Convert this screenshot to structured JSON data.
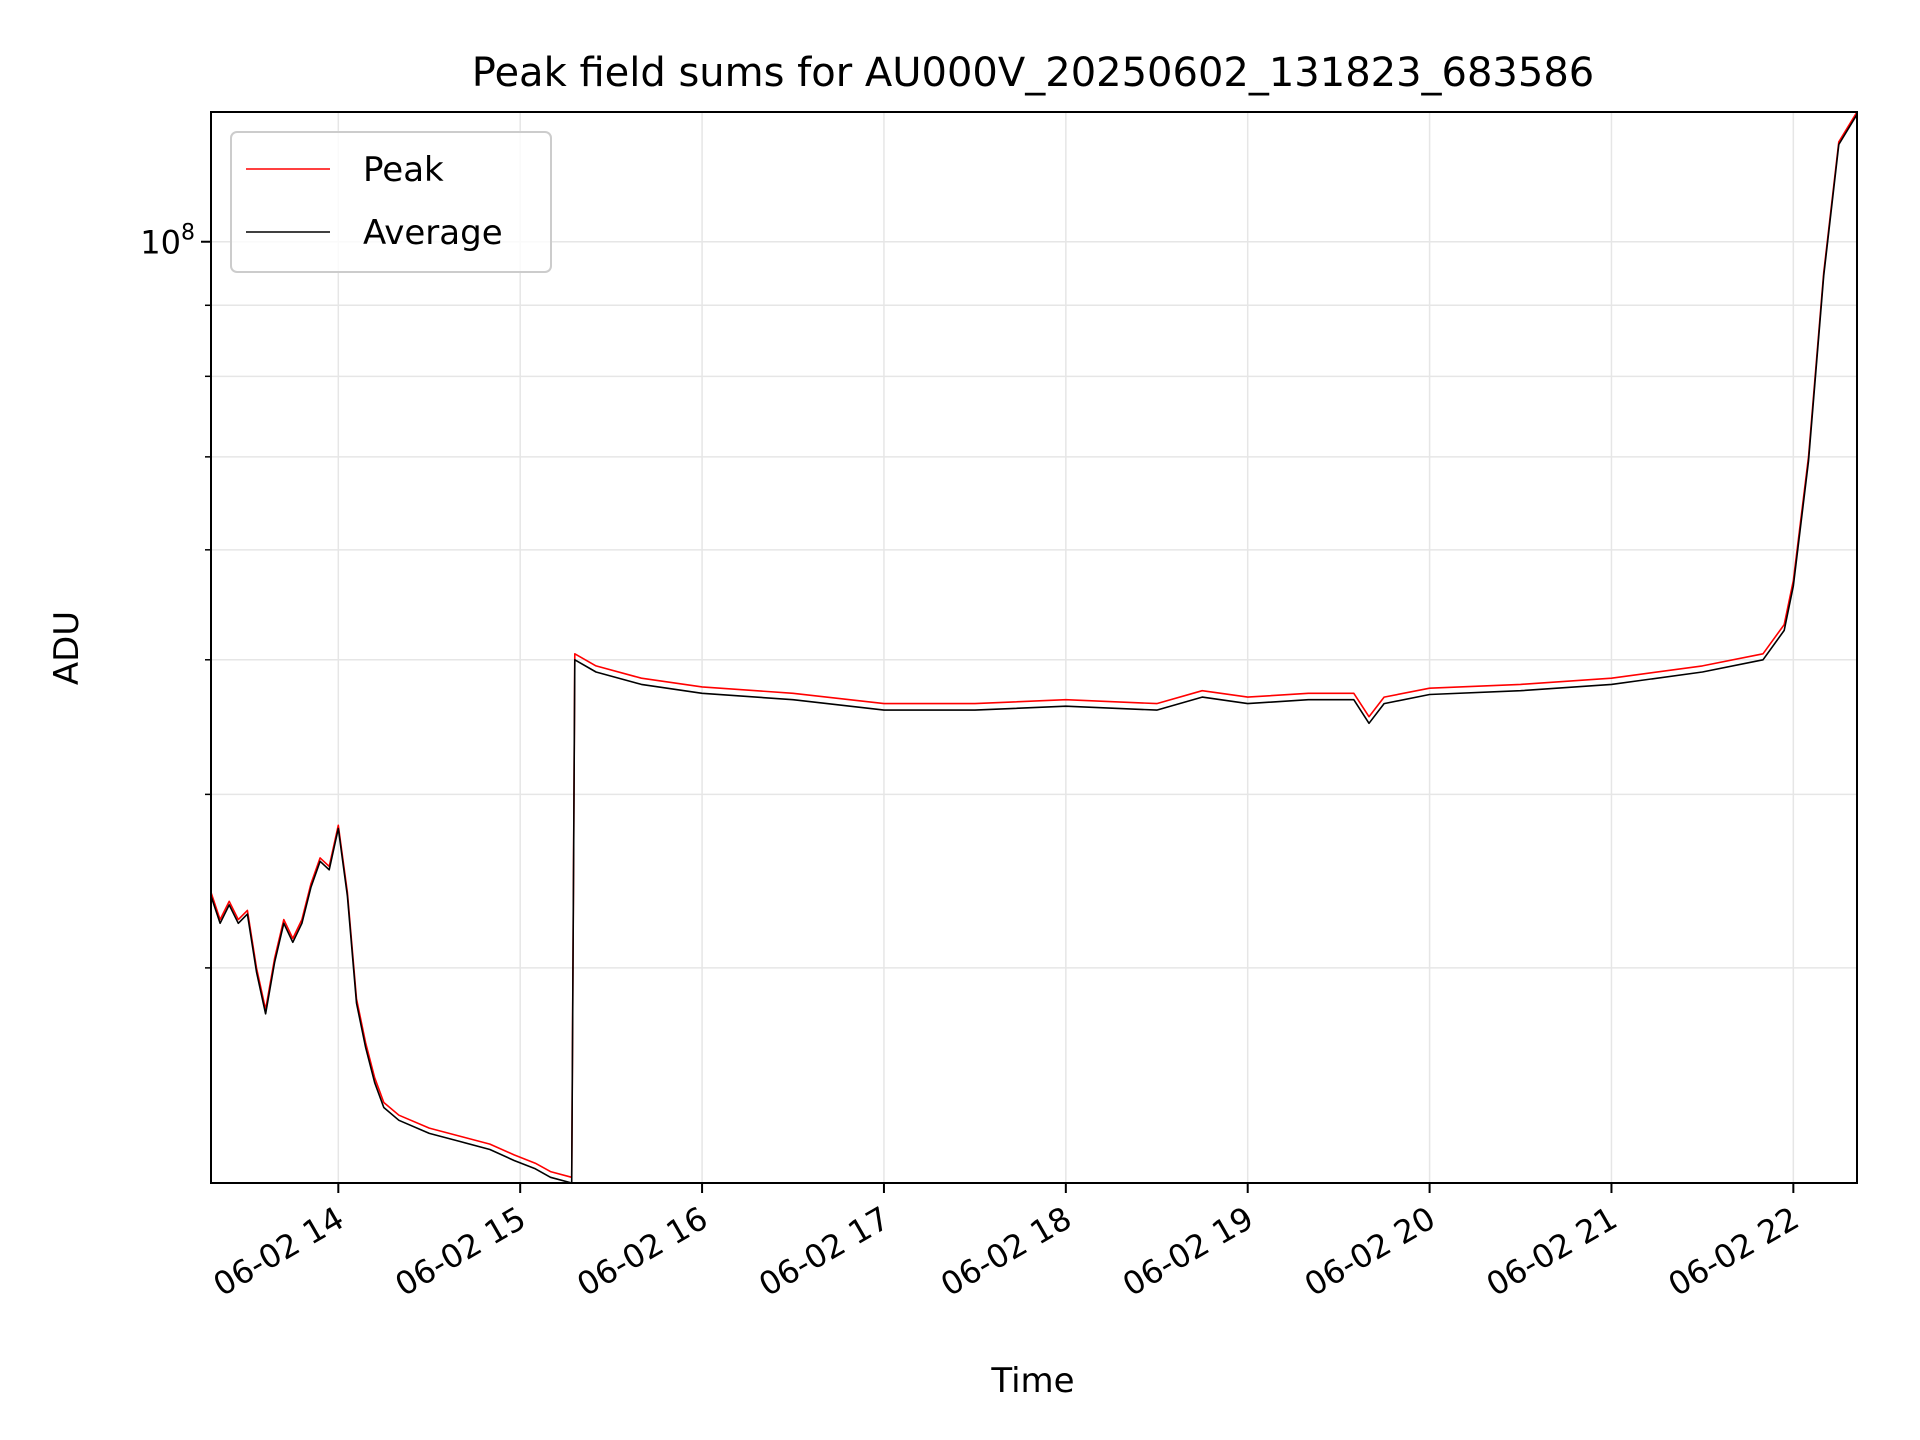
{
  "chart_data": {
    "type": "line",
    "title": "Peak field sums for AU000V_20250602_131823_683586",
    "xlabel": "Time",
    "ylabel": "ADU",
    "y_scale": "log",
    "xlim": [
      "2025-06-02 13:18",
      "2025-06-02 22:21"
    ],
    "ylim": [
      21000000,
      124000000
    ],
    "x_ticks": [
      "06-02 14",
      "06-02 15",
      "06-02 16",
      "06-02 17",
      "06-02 18",
      "06-02 19",
      "06-02 20",
      "06-02 21",
      "06-02 22"
    ],
    "x_tick_values": [
      "2025-06-02 14:00",
      "2025-06-02 15:00",
      "2025-06-02 16:00",
      "2025-06-02 17:00",
      "2025-06-02 18:00",
      "2025-06-02 19:00",
      "2025-06-02 20:00",
      "2025-06-02 21:00",
      "2025-06-02 22:00"
    ],
    "y_ticks": [
      {
        "label_base": "10",
        "label_exp": "8",
        "value": 100000000
      }
    ],
    "y_minor_ticks": [
      30000000,
      40000000,
      50000000,
      60000000,
      70000000,
      80000000,
      90000000
    ],
    "grid": true,
    "legend": "upper left",
    "series": [
      {
        "name": "Peak",
        "color": "#ff0000",
        "x": [
          "2025-06-02 13:18",
          "2025-06-02 13:21",
          "2025-06-02 13:24",
          "2025-06-02 13:27",
          "2025-06-02 13:30",
          "2025-06-02 13:33",
          "2025-06-02 13:36",
          "2025-06-02 13:39",
          "2025-06-02 13:42",
          "2025-06-02 13:45",
          "2025-06-02 13:48",
          "2025-06-02 13:51",
          "2025-06-02 13:54",
          "2025-06-02 13:57",
          "2025-06-02 14:00",
          "2025-06-02 14:03",
          "2025-06-02 14:06",
          "2025-06-02 14:09",
          "2025-06-02 14:12",
          "2025-06-02 14:15",
          "2025-06-02 14:20",
          "2025-06-02 14:30",
          "2025-06-02 14:40",
          "2025-06-02 14:50",
          "2025-06-02 14:58",
          "2025-06-02 15:05",
          "2025-06-02 15:10",
          "2025-06-02 15:17",
          "2025-06-02 15:18",
          "2025-06-02 15:25",
          "2025-06-02 15:40",
          "2025-06-02 16:00",
          "2025-06-02 16:30",
          "2025-06-02 17:00",
          "2025-06-02 17:30",
          "2025-06-02 18:00",
          "2025-06-02 18:30",
          "2025-06-02 18:45",
          "2025-06-02 19:00",
          "2025-06-02 19:20",
          "2025-06-02 19:35",
          "2025-06-02 19:40",
          "2025-06-02 19:45",
          "2025-06-02 20:00",
          "2025-06-02 20:30",
          "2025-06-02 21:00",
          "2025-06-02 21:30",
          "2025-06-02 21:50",
          "2025-06-02 21:57",
          "2025-06-02 22:00",
          "2025-06-02 22:05",
          "2025-06-02 22:10",
          "2025-06-02 22:15",
          "2025-06-02 22:21"
        ],
        "y": [
          34000000,
          32500000,
          33500000,
          32500000,
          33000000,
          30000000,
          28000000,
          30500000,
          32500000,
          31500000,
          32500000,
          34500000,
          36000000,
          35500000,
          38000000,
          34000000,
          28500000,
          26500000,
          25000000,
          24000000,
          23500000,
          23000000,
          22700000,
          22400000,
          22000000,
          21700000,
          21400000,
          21200000,
          50500000,
          49500000,
          48500000,
          47800000,
          47300000,
          46500000,
          46500000,
          46800000,
          46500000,
          47500000,
          47000000,
          47300000,
          47300000,
          45500000,
          47000000,
          47700000,
          48000000,
          48500000,
          49500000,
          50500000,
          53000000,
          57000000,
          70000000,
          95000000,
          118000000,
          124000000
        ]
      },
      {
        "name": "Average",
        "color": "#000000",
        "x": [
          "2025-06-02 13:18",
          "2025-06-02 13:21",
          "2025-06-02 13:24",
          "2025-06-02 13:27",
          "2025-06-02 13:30",
          "2025-06-02 13:33",
          "2025-06-02 13:36",
          "2025-06-02 13:39",
          "2025-06-02 13:42",
          "2025-06-02 13:45",
          "2025-06-02 13:48",
          "2025-06-02 13:51",
          "2025-06-02 13:54",
          "2025-06-02 13:57",
          "2025-06-02 14:00",
          "2025-06-02 14:03",
          "2025-06-02 14:06",
          "2025-06-02 14:09",
          "2025-06-02 14:12",
          "2025-06-02 14:15",
          "2025-06-02 14:20",
          "2025-06-02 14:30",
          "2025-06-02 14:40",
          "2025-06-02 14:50",
          "2025-06-02 14:58",
          "2025-06-02 15:05",
          "2025-06-02 15:10",
          "2025-06-02 15:17",
          "2025-06-02 15:18",
          "2025-06-02 15:25",
          "2025-06-02 15:40",
          "2025-06-02 16:00",
          "2025-06-02 16:30",
          "2025-06-02 17:00",
          "2025-06-02 17:30",
          "2025-06-02 18:00",
          "2025-06-02 18:30",
          "2025-06-02 18:45",
          "2025-06-02 19:00",
          "2025-06-02 19:20",
          "2025-06-02 19:35",
          "2025-06-02 19:40",
          "2025-06-02 19:45",
          "2025-06-02 20:00",
          "2025-06-02 20:30",
          "2025-06-02 21:00",
          "2025-06-02 21:30",
          "2025-06-02 21:50",
          "2025-06-02 21:57",
          "2025-06-02 22:00",
          "2025-06-02 22:05",
          "2025-06-02 22:10",
          "2025-06-02 22:15",
          "2025-06-02 22:21"
        ],
        "y": [
          33800000,
          32300000,
          33300000,
          32300000,
          32800000,
          29800000,
          27800000,
          30300000,
          32300000,
          31300000,
          32300000,
          34300000,
          35800000,
          35300000,
          37800000,
          33800000,
          28300000,
          26300000,
          24800000,
          23800000,
          23300000,
          22800000,
          22500000,
          22200000,
          21800000,
          21500000,
          21200000,
          21000000,
          50000000,
          49000000,
          48000000,
          47300000,
          46800000,
          46000000,
          46000000,
          46300000,
          46000000,
          47000000,
          46500000,
          46800000,
          46800000,
          45000000,
          46500000,
          47200000,
          47500000,
          48000000,
          49000000,
          50000000,
          52500000,
          56500000,
          69500000,
          94500000,
          117500000,
          123500000
        ]
      }
    ]
  }
}
